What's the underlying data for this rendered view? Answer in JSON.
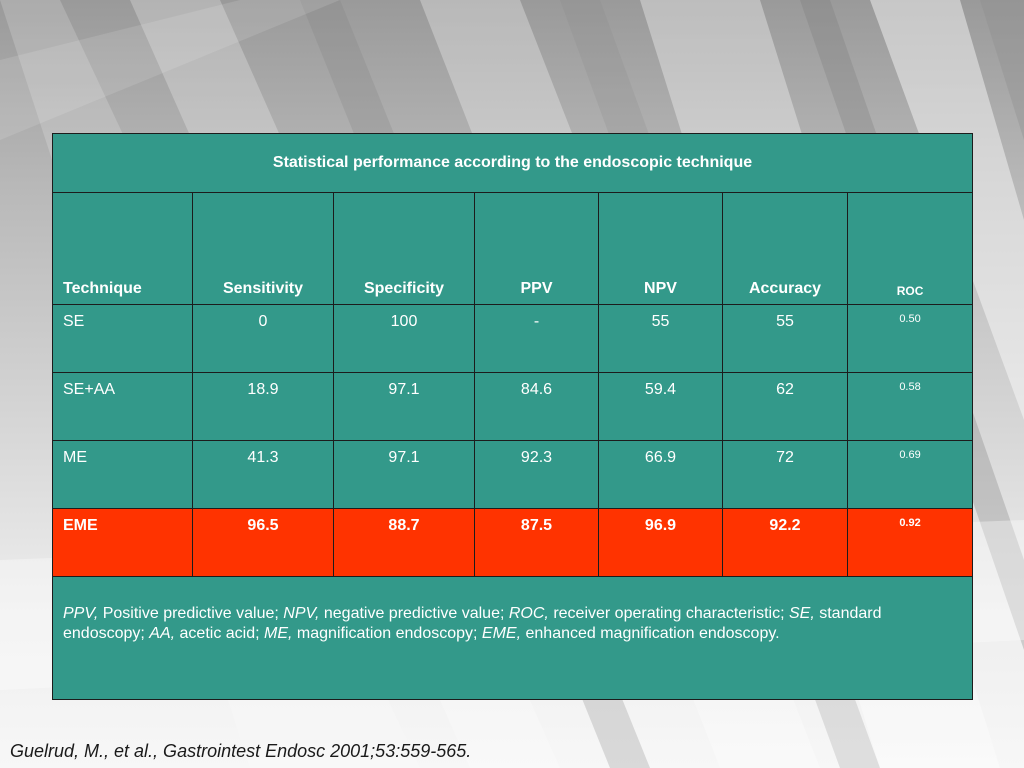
{
  "table": {
    "title": "Statistical performance according to the endoscopic technique",
    "headers": [
      "Technique",
      "Sensitivity",
      "Specificity",
      "PPV",
      "NPV",
      "Accuracy",
      "ROC"
    ],
    "rows": [
      [
        "SE",
        "0",
        "100",
        "-",
        "55",
        "55",
        "0.50"
      ],
      [
        "SE+AA",
        "18.9",
        "97.1",
        "84.6",
        "59.4",
        "62",
        "0.58"
      ],
      [
        "ME",
        "41.3",
        "97.1",
        "92.3",
        "66.9",
        "72",
        "0.69"
      ],
      [
        "EME",
        "96.5",
        "88.7",
        "87.5",
        "96.9",
        "92.2",
        "0.92"
      ]
    ],
    "highlight_color": "#ff3300",
    "table_color": "#33998a",
    "footnote": [
      {
        "term": "PPV,",
        "text": " Positive predictive value; "
      },
      {
        "term": "NPV,",
        "text": " negative predictive value; "
      },
      {
        "term": "ROC,",
        "text": " receiver operating characteristic; "
      },
      {
        "term": "SE,",
        "text": " standard endoscopy; "
      },
      {
        "term": "AA,",
        "text": " acetic acid; "
      },
      {
        "term": "ME,",
        "text": " magnification endoscopy; "
      },
      {
        "term": "EME,",
        "text": " enhanced magnification endoscopy."
      }
    ]
  },
  "citation": "Guelrud, M., et al., Gastrointest Endosc 2001;53:559-565."
}
